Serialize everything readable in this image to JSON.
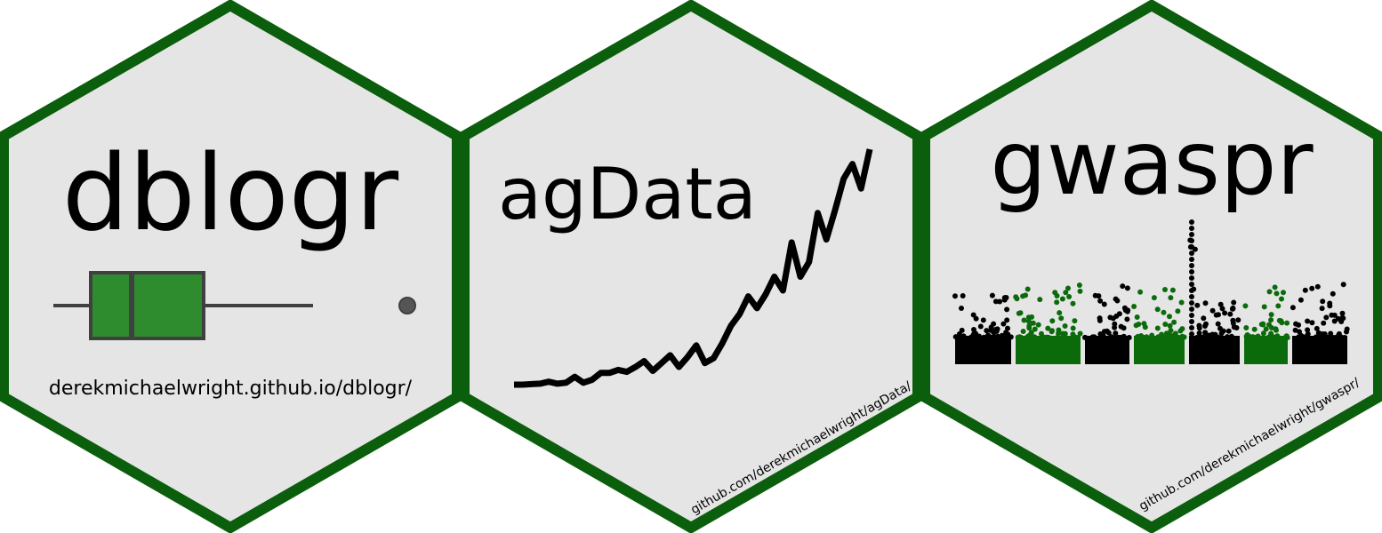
{
  "colors": {
    "hex_border": "#0b5e0b",
    "hex_fill": "#e5e5e5",
    "box_fill": "#2e8b2e",
    "text": "#000000",
    "manhattan_green": "#0b6b0b",
    "manhattan_black": "#000000",
    "outlier": "#555555"
  },
  "stickers": [
    {
      "name": "dblogr",
      "title": "dblogr",
      "url": "derekmichaelwright.github.io/dblogr/",
      "icon": "boxplot-icon"
    },
    {
      "name": "agData",
      "title": "agData",
      "url": "github.com/derekmichaelwright/agData/",
      "icon": "line-chart-icon",
      "line_values": [
        0,
        0,
        0.5,
        1,
        3,
        1,
        2,
        8,
        2,
        5,
        12,
        12,
        15,
        13,
        18,
        24,
        14,
        22,
        30,
        18,
        28,
        40,
        22,
        27,
        42,
        60,
        72,
        90,
        78,
        92,
        110,
        96,
        145,
        110,
        125,
        175,
        148,
        178,
        210,
        225,
        200,
        240
      ]
    },
    {
      "name": "gwaspr",
      "title": "gwaspr",
      "url": "github.com/derekmichaelwright/gwaspr/",
      "icon": "manhattan-plot-icon"
    }
  ]
}
